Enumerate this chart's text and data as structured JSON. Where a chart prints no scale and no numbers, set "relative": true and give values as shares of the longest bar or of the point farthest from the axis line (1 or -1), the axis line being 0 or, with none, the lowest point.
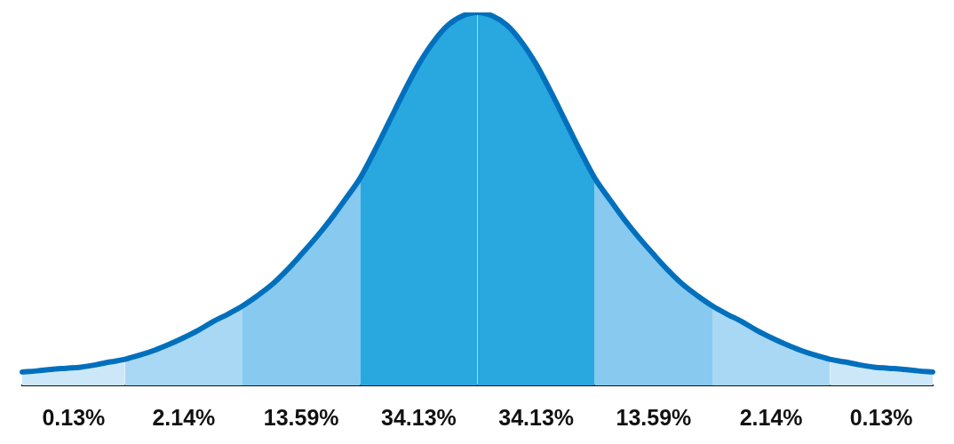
{
  "chart_data": {
    "type": "area",
    "relative": true,
    "marker": "none",
    "legend": false,
    "categories": [
      null,
      null,
      null,
      null,
      null,
      null,
      null,
      null,
      null,
      null,
      null,
      null,
      null,
      null,
      null,
      null,
      null,
      null,
      null,
      null,
      null,
      null,
      null,
      null,
      null,
      null,
      null,
      null,
      null,
      null,
      null,
      null,
      null,
      null,
      null,
      null,
      null,
      null,
      null,
      null,
      null,
      null,
      null,
      null,
      null,
      null,
      null,
      null,
      null,
      null,
      null,
      null,
      null,
      null,
      null,
      null,
      null,
      null,
      null,
      null,
      null,
      null,
      null
    ],
    "series": [
      {
        "name": "0.13%",
        "color": "#cce8f8",
        "values": [
          0.036,
          0.039,
          0.043,
          0.046,
          0.049,
          0.055,
          0.063,
          0.07,
          null,
          null,
          null,
          null,
          null,
          null,
          null,
          null,
          null,
          null,
          null,
          null,
          null,
          null,
          null,
          null,
          null,
          null,
          null,
          null,
          null,
          null,
          null,
          null,
          null,
          null,
          null,
          null,
          null,
          null,
          null,
          null,
          null,
          null,
          null,
          null,
          null,
          null,
          null,
          null,
          null,
          null,
          null,
          null,
          null,
          null,
          null,
          null,
          null,
          null,
          null,
          null,
          null,
          null,
          null
        ]
      },
      {
        "name": "2.14%",
        "color": "#a8d8f4",
        "values": [
          null,
          null,
          null,
          null,
          null,
          null,
          null,
          0.07,
          0.081,
          0.094,
          0.11,
          0.128,
          0.148,
          0.171,
          0.191,
          0.213,
          null,
          null,
          null,
          null,
          null,
          null,
          null,
          null,
          null,
          null,
          null,
          null,
          null,
          null,
          null,
          null,
          null,
          null,
          null,
          null,
          null,
          null,
          null,
          null,
          null,
          null,
          null,
          null,
          null,
          null,
          null,
          null,
          null,
          null,
          null,
          null,
          null,
          null,
          null,
          null,
          null,
          null,
          null,
          null,
          null,
          null,
          null
        ]
      },
      {
        "name": "13.59%",
        "color": "#88c9ef",
        "values": [
          null,
          null,
          null,
          null,
          null,
          null,
          null,
          null,
          null,
          null,
          null,
          null,
          null,
          null,
          null,
          0.213,
          0.24,
          0.27,
          0.308,
          0.351,
          0.396,
          0.445,
          0.499,
          0.555,
          null,
          null,
          null,
          null,
          null,
          null,
          null,
          null,
          null,
          null,
          null,
          null,
          null,
          null,
          null,
          null,
          null,
          null,
          null,
          null,
          null,
          null,
          null,
          null,
          null,
          null,
          null,
          null,
          null,
          null,
          null,
          null,
          null,
          null,
          null,
          null,
          null,
          null,
          null
        ]
      },
      {
        "name": "34.13%",
        "color": "#29a8e0",
        "values": [
          null,
          null,
          null,
          null,
          null,
          null,
          null,
          null,
          null,
          null,
          null,
          null,
          null,
          null,
          null,
          null,
          null,
          null,
          null,
          null,
          null,
          null,
          null,
          0.555,
          0.629,
          0.708,
          0.787,
          0.861,
          0.921,
          0.966,
          0.991,
          1.0,
          null,
          null,
          null,
          null,
          null,
          null,
          null,
          null,
          null,
          null,
          null,
          null,
          null,
          null,
          null,
          null,
          null,
          null,
          null,
          null,
          null,
          null,
          null,
          null,
          null,
          null,
          null,
          null,
          null,
          null,
          null
        ]
      },
      {
        "name": "34.13%",
        "color": "#29a8e0",
        "values": [
          null,
          null,
          null,
          null,
          null,
          null,
          null,
          null,
          null,
          null,
          null,
          null,
          null,
          null,
          null,
          null,
          null,
          null,
          null,
          null,
          null,
          null,
          null,
          null,
          null,
          null,
          null,
          null,
          null,
          null,
          null,
          1.0,
          0.991,
          0.966,
          0.921,
          0.861,
          0.787,
          0.708,
          0.629,
          0.555,
          null,
          null,
          null,
          null,
          null,
          null,
          null,
          null,
          null,
          null,
          null,
          null,
          null,
          null,
          null,
          null,
          null,
          null,
          null,
          null,
          null,
          null,
          null
        ]
      },
      {
        "name": "13.59%",
        "color": "#88c9ef",
        "values": [
          null,
          null,
          null,
          null,
          null,
          null,
          null,
          null,
          null,
          null,
          null,
          null,
          null,
          null,
          null,
          null,
          null,
          null,
          null,
          null,
          null,
          null,
          null,
          null,
          null,
          null,
          null,
          null,
          null,
          null,
          null,
          null,
          null,
          null,
          null,
          null,
          null,
          null,
          null,
          0.555,
          0.499,
          0.445,
          0.396,
          0.351,
          0.308,
          0.27,
          0.24,
          0.213,
          null,
          null,
          null,
          null,
          null,
          null,
          null,
          null,
          null,
          null,
          null,
          null,
          null,
          null,
          null
        ]
      },
      {
        "name": "2.14%",
        "color": "#a8d8f4",
        "values": [
          null,
          null,
          null,
          null,
          null,
          null,
          null,
          null,
          null,
          null,
          null,
          null,
          null,
          null,
          null,
          null,
          null,
          null,
          null,
          null,
          null,
          null,
          null,
          null,
          null,
          null,
          null,
          null,
          null,
          null,
          null,
          null,
          null,
          null,
          null,
          null,
          null,
          null,
          null,
          null,
          null,
          null,
          null,
          null,
          null,
          null,
          null,
          0.213,
          0.191,
          0.171,
          0.148,
          0.128,
          0.11,
          0.094,
          0.081,
          0.07,
          null,
          null,
          null,
          null,
          null,
          null,
          null
        ]
      },
      {
        "name": "0.13%",
        "color": "#cce8f8",
        "values": [
          null,
          null,
          null,
          null,
          null,
          null,
          null,
          null,
          null,
          null,
          null,
          null,
          null,
          null,
          null,
          null,
          null,
          null,
          null,
          null,
          null,
          null,
          null,
          null,
          null,
          null,
          null,
          null,
          null,
          null,
          null,
          null,
          null,
          null,
          null,
          null,
          null,
          null,
          null,
          null,
          null,
          null,
          null,
          null,
          null,
          null,
          null,
          null,
          null,
          null,
          null,
          null,
          null,
          null,
          null,
          0.07,
          0.063,
          0.055,
          0.049,
          0.046,
          0.043,
          0.039,
          0.036
        ]
      },
      {
        "type": "line",
        "color": "#0070bd",
        "values": [
          0.036,
          0.039,
          0.043,
          0.046,
          0.049,
          0.055,
          0.063,
          0.07,
          0.081,
          0.094,
          0.11,
          0.128,
          0.148,
          0.171,
          0.191,
          0.213,
          0.24,
          0.27,
          0.308,
          0.351,
          0.396,
          0.445,
          0.499,
          0.555,
          0.629,
          0.708,
          0.787,
          0.861,
          0.921,
          0.966,
          0.991,
          1.0,
          0.991,
          0.966,
          0.921,
          0.861,
          0.787,
          0.708,
          0.629,
          0.555,
          0.499,
          0.445,
          0.396,
          0.351,
          0.308,
          0.27,
          0.24,
          0.213,
          0.191,
          0.171,
          0.148,
          0.128,
          0.11,
          0.094,
          0.081,
          0.07,
          0.063,
          0.055,
          0.049,
          0.046,
          0.043,
          0.039,
          0.036
        ]
      }
    ]
  }
}
